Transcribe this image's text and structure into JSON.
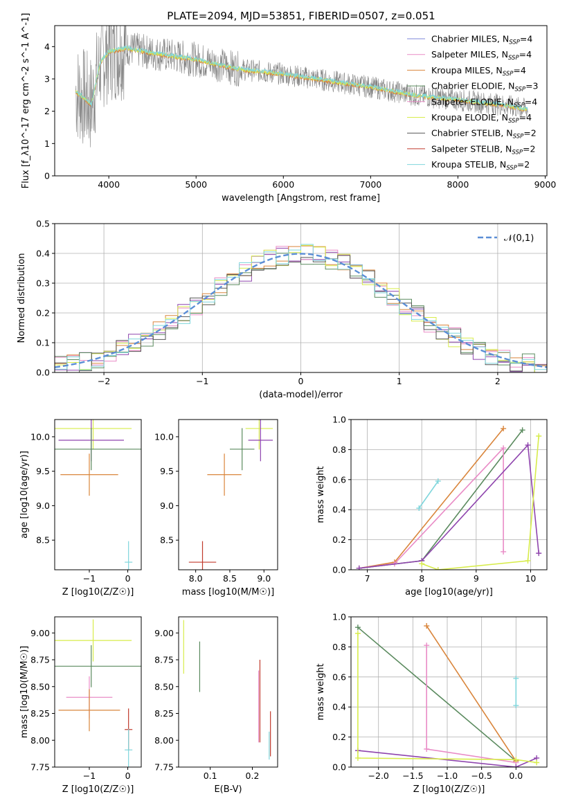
{
  "title": "PLATE=2094, MJD=53851, FIBERID=0507, z=0.051",
  "colors": {
    "chabrier_miles": "#7b86d8",
    "salpeter_miles": "#e98bc6",
    "kroupa_miles": "#d9853b",
    "chabrier_elodie": "#5a8a5e",
    "salpeter_elodie": "#e98bc6",
    "kroupa_elodie": "#d7ec4a",
    "chabrier_stelib": "#555555",
    "salpeter_stelib": "#c0392b",
    "kroupa_stelib": "#7fd6dc",
    "purple": "#8e44ad",
    "data_gray": "#808080",
    "normal_curve": "#5b8ed6"
  },
  "chart_data": [
    {
      "id": "spectrum",
      "type": "line",
      "title": "PLATE=2094, MJD=53851, FIBERID=0507, z=0.051",
      "xlabel": "wavelength [Angstrom, rest frame]",
      "ylabel": "Flux [f_λ10^-17 erg cm^-2 s^-1 A^-1]",
      "xlim": [
        3380,
        9020
      ],
      "ylim": [
        0,
        4.65
      ],
      "xticks": [
        4000,
        5000,
        6000,
        7000,
        8000,
        9000
      ],
      "yticks": [
        0,
        1,
        2,
        3,
        4
      ],
      "legend_position": "upper right",
      "legend": [
        {
          "name": "Chabrier MILES",
          "nssp": "4",
          "color": "#7b86d8"
        },
        {
          "name": "Salpeter MILES",
          "nssp": "4",
          "color": "#e98bc6"
        },
        {
          "name": "Kroupa MILES",
          "nssp": "4",
          "color": "#d9853b"
        },
        {
          "name": "Chabrier ELODIE",
          "nssp": "3",
          "color": "#5a8a5e"
        },
        {
          "name": "Salpeter ELODIE",
          "nssp": "4",
          "color": "#e98bc6"
        },
        {
          "name": "Kroupa ELODIE",
          "nssp": "4",
          "color": "#d7ec4a"
        },
        {
          "name": "Chabrier STELIB",
          "nssp": "2",
          "color": "#555555"
        },
        {
          "name": "Salpeter STELIB",
          "nssp": "2",
          "color": "#c0392b"
        },
        {
          "name": "Kroupa STELIB",
          "nssp": "2",
          "color": "#7fd6dc"
        }
      ],
      "model_continuum": [
        {
          "x": 3620,
          "y": 2.6
        },
        {
          "x": 3700,
          "y": 2.45
        },
        {
          "x": 3800,
          "y": 2.2
        },
        {
          "x": 3900,
          "y": 3.5
        },
        {
          "x": 4000,
          "y": 3.85
        },
        {
          "x": 4200,
          "y": 3.95
        },
        {
          "x": 4500,
          "y": 3.8
        },
        {
          "x": 5000,
          "y": 3.6
        },
        {
          "x": 5500,
          "y": 3.3
        },
        {
          "x": 6000,
          "y": 3.15
        },
        {
          "x": 6500,
          "y": 2.95
        },
        {
          "x": 7000,
          "y": 2.75
        },
        {
          "x": 7500,
          "y": 2.5
        },
        {
          "x": 8000,
          "y": 2.35
        },
        {
          "x": 8500,
          "y": 2.2
        },
        {
          "x": 8800,
          "y": 2.05
        }
      ]
    },
    {
      "id": "residuals",
      "type": "line",
      "xlabel": "(data-model)/error",
      "ylabel": "Normed distribution",
      "xlim": [
        -2.5,
        2.5
      ],
      "ylim": [
        0,
        0.5
      ],
      "xticks": [
        -2,
        -1,
        0,
        1,
        2
      ],
      "yticks": [
        0.0,
        0.1,
        0.2,
        0.3,
        0.4,
        0.5
      ],
      "grid": true,
      "legend_position": "upper right",
      "legend": [
        {
          "name": "𝒩(0,1)",
          "color": "#5b8ed6"
        }
      ],
      "normal_curve": {
        "mean": 0,
        "std": 1
      }
    },
    {
      "id": "age_vs_Z",
      "type": "scatter",
      "xlabel": "Z [log10(Z/Z☉)]",
      "ylabel": "age  [log10(age/yr)]",
      "xlim": [
        -1.9,
        0.35
      ],
      "ylim": [
        8.07,
        10.25
      ],
      "xticks": [
        -1,
        0
      ],
      "yticks": [
        8.5,
        9.0,
        9.5,
        10.0
      ],
      "points": [
        {
          "x": -0.9,
          "xerr": 1.0,
          "y": 10.12,
          "color": "#d7ec4a"
        },
        {
          "x": -0.95,
          "xerr": 0.85,
          "y": 9.95,
          "color": "#8e44ad"
        },
        {
          "x": -0.95,
          "xerr": 1.3,
          "y": 9.82,
          "color": "#5a8a5e"
        },
        {
          "x": -1.0,
          "xerr": 0.75,
          "y": 9.45,
          "color": "#d9853b"
        },
        {
          "x": 0.02,
          "xerr": 0.1,
          "y": 8.18,
          "color": "#7fd6dc"
        }
      ]
    },
    {
      "id": "age_vs_mass",
      "type": "scatter",
      "xlabel": "mass [log10(M/M☉)]",
      "ylabel": "",
      "xlim": [
        7.75,
        9.2
      ],
      "ylim": [
        8.07,
        10.25
      ],
      "xticks": [
        8.0,
        8.5,
        9.0
      ],
      "yticks": [
        8.5,
        9.0,
        9.5,
        10.0
      ],
      "points": [
        {
          "x": 8.93,
          "xerr": 0.2,
          "y": 10.12,
          "color": "#d7ec4a"
        },
        {
          "x": 8.95,
          "xerr": 0.18,
          "y": 9.95,
          "color": "#8e44ad"
        },
        {
          "x": 8.68,
          "xerr": 0.18,
          "y": 9.82,
          "color": "#5a8a5e"
        },
        {
          "x": 8.42,
          "xerr": 0.25,
          "y": 9.45,
          "color": "#d9853b"
        },
        {
          "x": 8.1,
          "xerr": 0.2,
          "y": 8.18,
          "color": "#c0392b"
        }
      ]
    },
    {
      "id": "massweight_vs_age",
      "type": "line",
      "xlabel": "age  [log10(age/yr)]",
      "ylabel": "mass weight",
      "xlim": [
        6.7,
        10.3
      ],
      "ylim": [
        0,
        1.0
      ],
      "xticks": [
        7,
        8,
        9,
        10
      ],
      "yticks": [
        0.0,
        0.2,
        0.4,
        0.6,
        0.8,
        1.0
      ],
      "grid": true,
      "series": [
        {
          "color": "#d9853b",
          "points": [
            [
              6.85,
              0.01
            ],
            [
              7.5,
              0.05
            ],
            [
              9.5,
              0.94
            ]
          ]
        },
        {
          "color": "#5a8a5e",
          "points": [
            [
              6.85,
              0.01
            ],
            [
              8.0,
              0.06
            ],
            [
              9.85,
              0.93
            ]
          ]
        },
        {
          "color": "#e98bc6",
          "points": [
            [
              6.85,
              0.01
            ],
            [
              7.5,
              0.04
            ],
            [
              9.5,
              0.81
            ],
            [
              9.5,
              0.12
            ]
          ]
        },
        {
          "color": "#8e44ad",
          "points": [
            [
              6.85,
              0.01
            ],
            [
              8.0,
              0.06
            ],
            [
              9.95,
              0.83
            ],
            [
              10.15,
              0.11
            ]
          ]
        },
        {
          "color": "#d7ec4a",
          "points": [
            [
              8.0,
              0.04
            ],
            [
              8.3,
              0.0
            ],
            [
              9.95,
              0.06
            ],
            [
              10.15,
              0.89
            ]
          ]
        },
        {
          "color": "#7fd6dc",
          "points": [
            [
              7.95,
              0.41
            ],
            [
              8.3,
              0.59
            ]
          ]
        }
      ]
    },
    {
      "id": "mass_vs_Z",
      "type": "scatter",
      "xlabel": "Z [log10(Z/Z☉)]",
      "ylabel": "mass [log10(M/M☉)]",
      "xlim": [
        -1.9,
        0.35
      ],
      "ylim": [
        7.75,
        9.15
      ],
      "xticks": [
        -1,
        0
      ],
      "yticks": [
        7.75,
        8.0,
        8.25,
        8.5,
        8.75,
        9.0
      ],
      "points": [
        {
          "x": -0.9,
          "xerr": 1.0,
          "y": 8.93,
          "color": "#d7ec4a"
        },
        {
          "x": -0.95,
          "xerr": 1.3,
          "y": 8.69,
          "color": "#5a8a5e"
        },
        {
          "x": -1.0,
          "xerr": 0.6,
          "y": 8.4,
          "color": "#e98bc6"
        },
        {
          "x": -1.0,
          "xerr": 0.8,
          "y": 8.28,
          "color": "#d9853b"
        },
        {
          "x": 0.02,
          "xerr": 0.1,
          "y": 8.1,
          "color": "#c0392b"
        },
        {
          "x": 0.02,
          "xerr": 0.1,
          "y": 7.91,
          "color": "#7fd6dc"
        }
      ]
    },
    {
      "id": "mass_vs_ebv",
      "type": "scatter",
      "xlabel": "E(B-V)",
      "ylabel": "",
      "xlim": [
        0.025,
        0.26
      ],
      "ylim": [
        7.75,
        9.15
      ],
      "xticks": [
        0.1,
        0.2
      ],
      "yticks": [
        7.75,
        8.0,
        8.25,
        8.5,
        8.75,
        9.0
      ],
      "points": [
        {
          "x": 0.037,
          "ylo": 8.62,
          "yhi": 9.12,
          "color": "#d7ec4a"
        },
        {
          "x": 0.075,
          "ylo": 8.45,
          "yhi": 8.92,
          "color": "#5a8a5e"
        },
        {
          "x": 0.215,
          "ylo": 7.98,
          "yhi": 8.65,
          "color": "#e98bc6"
        },
        {
          "x": 0.218,
          "ylo": 7.98,
          "yhi": 8.75,
          "color": "#c0392b"
        },
        {
          "x": 0.243,
          "ylo": 7.85,
          "yhi": 8.27,
          "color": "#c0392b"
        },
        {
          "x": 0.24,
          "ylo": 7.82,
          "yhi": 8.08,
          "color": "#7fd6dc"
        }
      ]
    },
    {
      "id": "massweight_vs_Z",
      "type": "line",
      "xlabel": "Z [log10(Z/Z☉)]",
      "ylabel": "mass weight",
      "xlim": [
        -2.4,
        0.45
      ],
      "ylim": [
        0,
        1.0
      ],
      "xticks": [
        -2.0,
        -1.5,
        -1.0,
        -0.5,
        0.0
      ],
      "yticks": [
        0.0,
        0.2,
        0.4,
        0.6,
        0.8,
        1.0
      ],
      "grid": true,
      "series": [
        {
          "color": "#5a8a5e",
          "points": [
            [
              -2.3,
              0.93
            ],
            [
              0.0,
              0.04
            ]
          ]
        },
        {
          "color": "#d9853b",
          "points": [
            [
              -1.3,
              0.94
            ],
            [
              0.0,
              0.04
            ]
          ]
        },
        {
          "color": "#e98bc6",
          "points": [
            [
              -1.3,
              0.81
            ],
            [
              -1.3,
              0.12
            ],
            [
              0.0,
              0.03
            ]
          ]
        },
        {
          "color": "#8e44ad",
          "points": [
            [
              -2.3,
              0.11
            ],
            [
              0.0,
              0.0
            ],
            [
              0.3,
              0.06
            ]
          ]
        },
        {
          "color": "#d7ec4a",
          "points": [
            [
              -2.3,
              0.89
            ],
            [
              -2.3,
              0.06
            ],
            [
              0.0,
              0.05
            ],
            [
              0.3,
              0.03
            ]
          ]
        },
        {
          "color": "#7fd6dc",
          "points": [
            [
              0.0,
              0.41
            ],
            [
              0.0,
              0.59
            ]
          ]
        }
      ]
    }
  ]
}
